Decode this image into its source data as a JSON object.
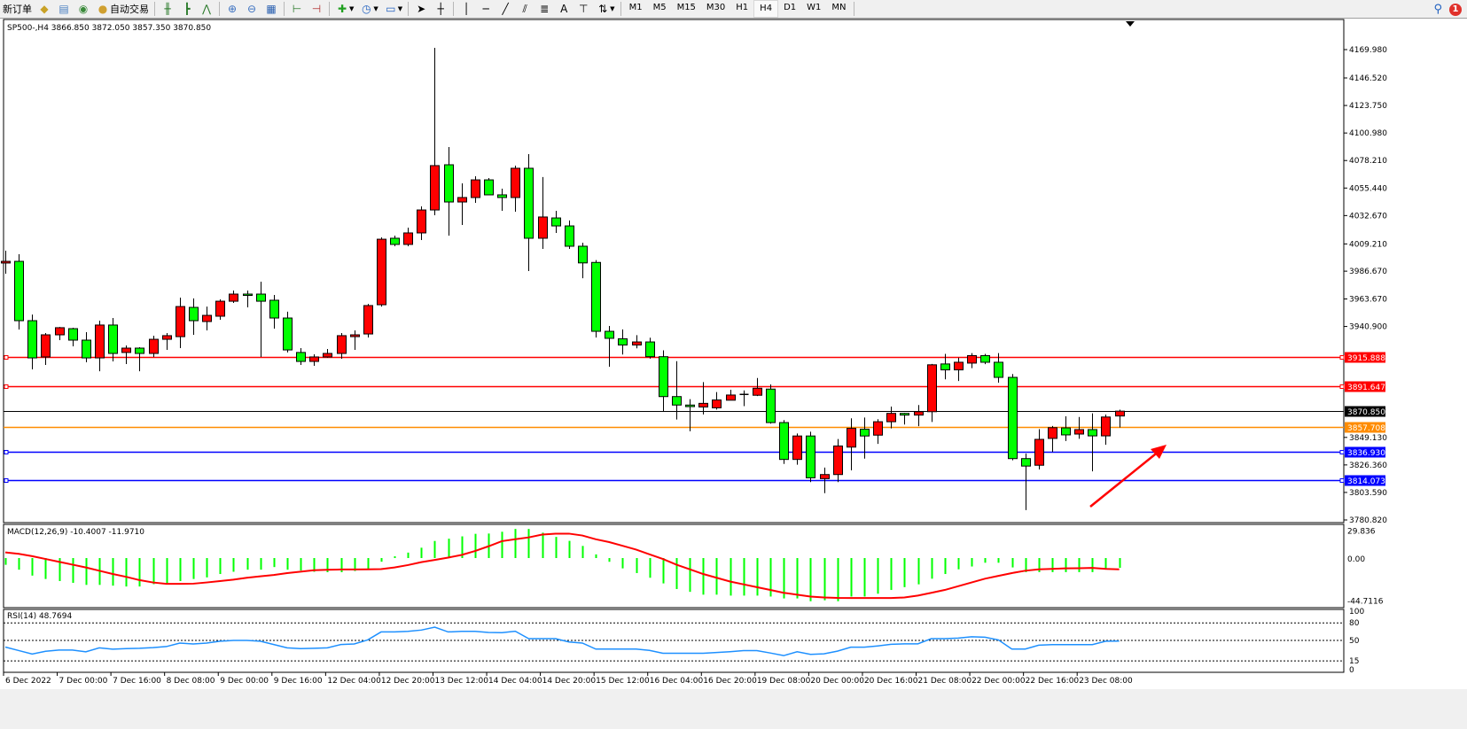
{
  "toolbar": {
    "new_order": "新订单",
    "auto_trading": "自动交易",
    "icons": [
      "gold-bars-icon",
      "profile-icon",
      "signal-icon",
      "bar-chart-icon",
      "candle-chart-icon",
      "line-chart-icon",
      "zoom-in-icon",
      "zoom-out-icon",
      "tile-windows-icon",
      "chart-shift-icon",
      "auto-scroll-icon",
      "indicators-icon",
      "periods-icon",
      "templates-icon",
      "cursor-icon",
      "crosshair-icon",
      "vertical-line-icon",
      "horizontal-line-icon",
      "trendline-icon",
      "fibonacci-icon",
      "channel-icon",
      "text-icon",
      "text-label-icon",
      "arrows-icon"
    ],
    "text_tool": "A",
    "timeframes": [
      "M1",
      "M5",
      "M15",
      "M30",
      "H1",
      "H4",
      "D1",
      "W1",
      "MN"
    ],
    "active_timeframe": "H4",
    "notification_count": "1"
  },
  "chart": {
    "header": "SP500-,H4  3866.850 3872.050 3857.350 3870.850",
    "symbol": "SP500-",
    "timeframe": "H4",
    "ohlc": {
      "open": 3866.85,
      "high": 3872.05,
      "low": 3857.35,
      "close": 3870.85
    },
    "up_color": "#ff0000",
    "down_color": "#00ff00",
    "price_labels": [
      "4169.980",
      "4146.520",
      "4123.750",
      "4100.980",
      "4078.210",
      "4055.440",
      "4032.670",
      "4009.210",
      "3986.670",
      "3963.670",
      "3940.900",
      "3849.130",
      "3826.360",
      "3803.590",
      "3780.820"
    ],
    "price_range": [
      3780.82,
      4169.98
    ],
    "levels": [
      {
        "price": 3915.888,
        "label": "3915.888",
        "color": "#ff0000"
      },
      {
        "price": 3891.647,
        "label": "3891.647",
        "color": "#ff0000"
      },
      {
        "price": 3870.85,
        "label": "3870.850",
        "color": "#000000"
      },
      {
        "price": 3857.708,
        "label": "3857.708",
        "color": "#ff8c00"
      },
      {
        "price": 3836.93,
        "label": "3836.930",
        "color": "#0000ff"
      },
      {
        "price": 3814.073,
        "label": "3814.073",
        "color": "#0000ff"
      }
    ],
    "time_labels": [
      "6 Dec 2022",
      "7 Dec 00:00",
      "7 Dec 16:00",
      "8 Dec 08:00",
      "9 Dec 00:00",
      "9 Dec 16:00",
      "12 Dec 04:00",
      "12 Dec 20:00",
      "13 Dec 12:00",
      "14 Dec 04:00",
      "14 Dec 20:00",
      "15 Dec 12:00",
      "16 Dec 04:00",
      "16 Dec 20:00",
      "19 Dec 08:00",
      "20 Dec 00:00",
      "20 Dec 16:00",
      "21 Dec 08:00",
      "22 Dec 00:00",
      "22 Dec 16:00",
      "23 Dec 08:00"
    ],
    "annotation": {
      "type": "arrow",
      "color": "#ff0000",
      "direction": "up-right"
    }
  },
  "chart_data": {
    "type": "candlestick",
    "ylim": [
      3780.82,
      4169.98
    ],
    "candles": [
      [
        3993.4,
        4003.6,
        3984.6,
        3994.8
      ],
      [
        3994.8,
        4000.7,
        3938.4,
        3945.7
      ],
      [
        3945.7,
        3950.8,
        3905.4,
        3914.9
      ],
      [
        3915.7,
        3935.5,
        3909.1,
        3934.0
      ],
      [
        3934.0,
        3940.5,
        3929.6,
        3939.9
      ],
      [
        3939.1,
        3939.9,
        3924.5,
        3929.6
      ],
      [
        3929.6,
        3936.2,
        3911.3,
        3914.9
      ],
      [
        3914.9,
        3945.7,
        3903.9,
        3942.1
      ],
      [
        3942.1,
        3947.9,
        3912.0,
        3918.6
      ],
      [
        3919.4,
        3925.2,
        3909.8,
        3923.0
      ],
      [
        3923.0,
        3923.7,
        3903.9,
        3918.6
      ],
      [
        3918.6,
        3933.3,
        3915.7,
        3930.3
      ],
      [
        3930.3,
        3935.5,
        3921.5,
        3933.3
      ],
      [
        3932.5,
        3964.8,
        3923.0,
        3957.4
      ],
      [
        3956.7,
        3964.1,
        3934.0,
        3945.7
      ],
      [
        3945.0,
        3957.4,
        3937.7,
        3950.1
      ],
      [
        3949.4,
        3963.3,
        3946.5,
        3961.8
      ],
      [
        3961.8,
        3970.6,
        3960.4,
        3967.7
      ],
      [
        3967.7,
        3970.6,
        3956.7,
        3967.6
      ],
      [
        3967.7,
        3978.0,
        3915.7,
        3961.8
      ],
      [
        3962.6,
        3967.0,
        3939.1,
        3947.9
      ],
      [
        3947.9,
        3953.1,
        3919.4,
        3921.5
      ],
      [
        3919.4,
        3923.0,
        3909.1,
        3912.0
      ],
      [
        3912.0,
        3917.9,
        3908.3,
        3915.7
      ],
      [
        3915.7,
        3922.3,
        3915.0,
        3918.6
      ],
      [
        3918.6,
        3935.5,
        3914.2,
        3933.3
      ],
      [
        3932.5,
        3937.7,
        3921.5,
        3934.0
      ],
      [
        3934.7,
        3959.6,
        3931.8,
        3958.2
      ],
      [
        3958.9,
        4014.6,
        3957.4,
        4013.1
      ],
      [
        4013.9,
        4016.1,
        4007.3,
        4008.8
      ],
      [
        4008.8,
        4022.7,
        4007.3,
        4018.3
      ],
      [
        4018.3,
        4040.3,
        4012.4,
        4037.3
      ],
      [
        4037.3,
        4171.4,
        4032.9,
        4074.0
      ],
      [
        4074.7,
        4089.4,
        4016.1,
        4043.9
      ],
      [
        4043.9,
        4059.3,
        4024.9,
        4047.6
      ],
      [
        4047.6,
        4065.2,
        4043.2,
        4062.2
      ],
      [
        4062.2,
        4063.7,
        4049.8,
        4049.8
      ],
      [
        4049.8,
        4054.9,
        4036.6,
        4047.6
      ],
      [
        4047.6,
        4074.0,
        4035.9,
        4071.8
      ],
      [
        4071.8,
        4083.5,
        3986.8,
        4013.9
      ],
      [
        4013.9,
        4064.5,
        4005.1,
        4031.5
      ],
      [
        4030.7,
        4036.6,
        4018.3,
        4024.1
      ],
      [
        4024.1,
        4028.6,
        4005.1,
        4007.3
      ],
      [
        4007.3,
        4010.2,
        3980.8,
        3993.5
      ],
      [
        3993.9,
        3995.8,
        3931.8,
        3936.9
      ],
      [
        3936.9,
        3941.3,
        3907.6,
        3931.1
      ],
      [
        3930.7,
        3938.5,
        3917.7,
        3925.6
      ],
      [
        3925.6,
        3933.7,
        3922.8,
        3928.1
      ],
      [
        3928.1,
        3931.6,
        3914.3,
        3915.9
      ],
      [
        3915.9,
        3921.2,
        3870.4,
        3882.9
      ],
      [
        3882.9,
        3912.2,
        3863.9,
        3875.9
      ],
      [
        3875.9,
        3880.8,
        3854.2,
        3874.6
      ],
      [
        3874.3,
        3894.9,
        3868.1,
        3877.3
      ],
      [
        3873.6,
        3886.6,
        3872.2,
        3880.1
      ],
      [
        3879.9,
        3888.6,
        3879.9,
        3884.2
      ],
      [
        3884.7,
        3888.0,
        3875.0,
        3884.7
      ],
      [
        3884.0,
        3898.3,
        3883.3,
        3889.8
      ],
      [
        3889.1,
        3893.0,
        3860.5,
        3861.4
      ],
      [
        3861.4,
        3863.5,
        3827.2,
        3830.9
      ],
      [
        3830.9,
        3852.4,
        3826.5,
        3850.3
      ],
      [
        3850.3,
        3853.8,
        3812.2,
        3815.7
      ],
      [
        3815.0,
        3824.2,
        3803.0,
        3818.4
      ],
      [
        3818.4,
        3847.8,
        3812.2,
        3842.0
      ],
      [
        3841.1,
        3864.9,
        3821.9,
        3856.6
      ],
      [
        3855.9,
        3865.6,
        3831.6,
        3850.3
      ],
      [
        3851.0,
        3864.2,
        3843.8,
        3862.1
      ],
      [
        3862.1,
        3874.6,
        3856.6,
        3869.0
      ],
      [
        3869.0,
        3869.5,
        3859.8,
        3867.6
      ],
      [
        3867.6,
        3875.9,
        3858.4,
        3870.4
      ],
      [
        3870.4,
        3909.9,
        3861.9,
        3909.2
      ],
      [
        3909.9,
        3918.2,
        3897.2,
        3905.0
      ],
      [
        3905.0,
        3915.0,
        3895.8,
        3911.3
      ],
      [
        3910.6,
        3918.9,
        3906.4,
        3916.8
      ],
      [
        3916.8,
        3918.2,
        3909.7,
        3911.3
      ],
      [
        3911.3,
        3918.9,
        3894.4,
        3898.8
      ],
      [
        3898.8,
        3901.6,
        3830.2,
        3831.6
      ],
      [
        3831.6,
        3835.8,
        3789.0,
        3825.4
      ],
      [
        3826.1,
        3855.9,
        3822.6,
        3847.5
      ],
      [
        3848.3,
        3858.6,
        3837.1,
        3857.2
      ],
      [
        3857.0,
        3866.6,
        3846.1,
        3851.2
      ],
      [
        3851.9,
        3866.0,
        3848.0,
        3855.6
      ],
      [
        3855.6,
        3869.0,
        3821.0,
        3850.4
      ],
      [
        3850.4,
        3868.0,
        3843.0,
        3866.0
      ],
      [
        3866.85,
        3872.05,
        3857.35,
        3870.85
      ]
    ],
    "macd": {
      "title": "MACD(12,26,9) -10.4007 -11.9710",
      "axis_labels": [
        "29.836",
        "0.00",
        "-44.7116"
      ],
      "ylim": [
        -44.7116,
        29.836
      ],
      "histogram_color": "#00ff00",
      "signal_color": "#ff0000",
      "histogram": [
        -7.2,
        -12.4,
        -18.7,
        -22.3,
        -24.5,
        -26.4,
        -28.6,
        -28.6,
        -29.4,
        -30.3,
        -30.3,
        -27.8,
        -27.8,
        -24.5,
        -22.3,
        -20.6,
        -17.0,
        -14.6,
        -12.4,
        -12.4,
        -9.6,
        -12.4,
        -13.2,
        -14.6,
        -15.1,
        -15.1,
        -13.8,
        -12.7,
        -3.9,
        1.9,
        5.8,
        11.0,
        18.2,
        20.6,
        23.1,
        25.8,
        26.1,
        28,
        31,
        31,
        27,
        22.5,
        18.3,
        12.9,
        3.9,
        -4,
        -11,
        -16,
        -21,
        -27,
        -33,
        -36,
        -39,
        -39,
        -40,
        -40,
        -40,
        -41,
        -43,
        -43,
        -46,
        -45,
        -46,
        -41,
        -41,
        -38,
        -34,
        -31,
        -28,
        -22,
        -17,
        -12,
        -9,
        -5,
        -5,
        -10,
        -15,
        -15,
        -15,
        -15,
        -15,
        -15,
        -12,
        -10.4007
      ],
      "signal": [
        6,
        4.5,
        2,
        -1,
        -4,
        -7,
        -10,
        -13.5,
        -17,
        -20,
        -23.5,
        -26,
        -27.5,
        -27.5,
        -27.3,
        -26,
        -24.5,
        -23,
        -21,
        -19.5,
        -18,
        -16,
        -14.5,
        -13,
        -12.5,
        -12.2,
        -12.1,
        -12,
        -11.8,
        -10,
        -7.5,
        -4.4,
        -2,
        0.5,
        3.3,
        7.5,
        12.5,
        18,
        20,
        22,
        25,
        26,
        26,
        24,
        20,
        17,
        13,
        9,
        4,
        -1,
        -7,
        -12,
        -17,
        -21,
        -25,
        -28,
        -31,
        -34,
        -37,
        -39,
        -41,
        -42,
        -42.5,
        -42.6,
        -42.6,
        -42.6,
        -42.6,
        -42,
        -40,
        -37,
        -34,
        -30,
        -26,
        -22,
        -19,
        -16,
        -13.5,
        -12,
        -11.5,
        -11,
        -10.8,
        -10.5,
        -11.5,
        -11.971
      ]
    },
    "rsi": {
      "title": "RSI(14) 48.7694",
      "axis_labels": [
        "100",
        "80",
        "50",
        "15",
        "0"
      ],
      "levels": [
        80,
        50,
        15
      ],
      "ylim": [
        0,
        100
      ],
      "color": "#1e90ff",
      "values": [
        38.6,
        32.7,
        26.8,
        31.4,
        33.6,
        33.6,
        30.5,
        37.3,
        35,
        36,
        36.5,
        37.7,
        39.5,
        45.5,
        44,
        45.5,
        48.6,
        50,
        50,
        48.6,
        43,
        37.3,
        36,
        36.5,
        37.3,
        43,
        44,
        50.9,
        64.5,
        64.5,
        65.5,
        67.7,
        72.7,
        64.5,
        65.5,
        65.5,
        63.6,
        63.2,
        65.7,
        53,
        53,
        53,
        47.3,
        45.5,
        35.2,
        35.2,
        35.2,
        35.2,
        33,
        28,
        28,
        28,
        28,
        29.3,
        30.7,
        32.5,
        32.5,
        28.5,
        24,
        30.7,
        26.2,
        27.1,
        31.6,
        38.4,
        38.4,
        40.6,
        43.3,
        44.2,
        44.2,
        53,
        53,
        54,
        56.3,
        55.5,
        50.9,
        35.2,
        35.2,
        41.9,
        42.8,
        42.8,
        42.8,
        42.8,
        48.7,
        48.7694
      ]
    }
  }
}
